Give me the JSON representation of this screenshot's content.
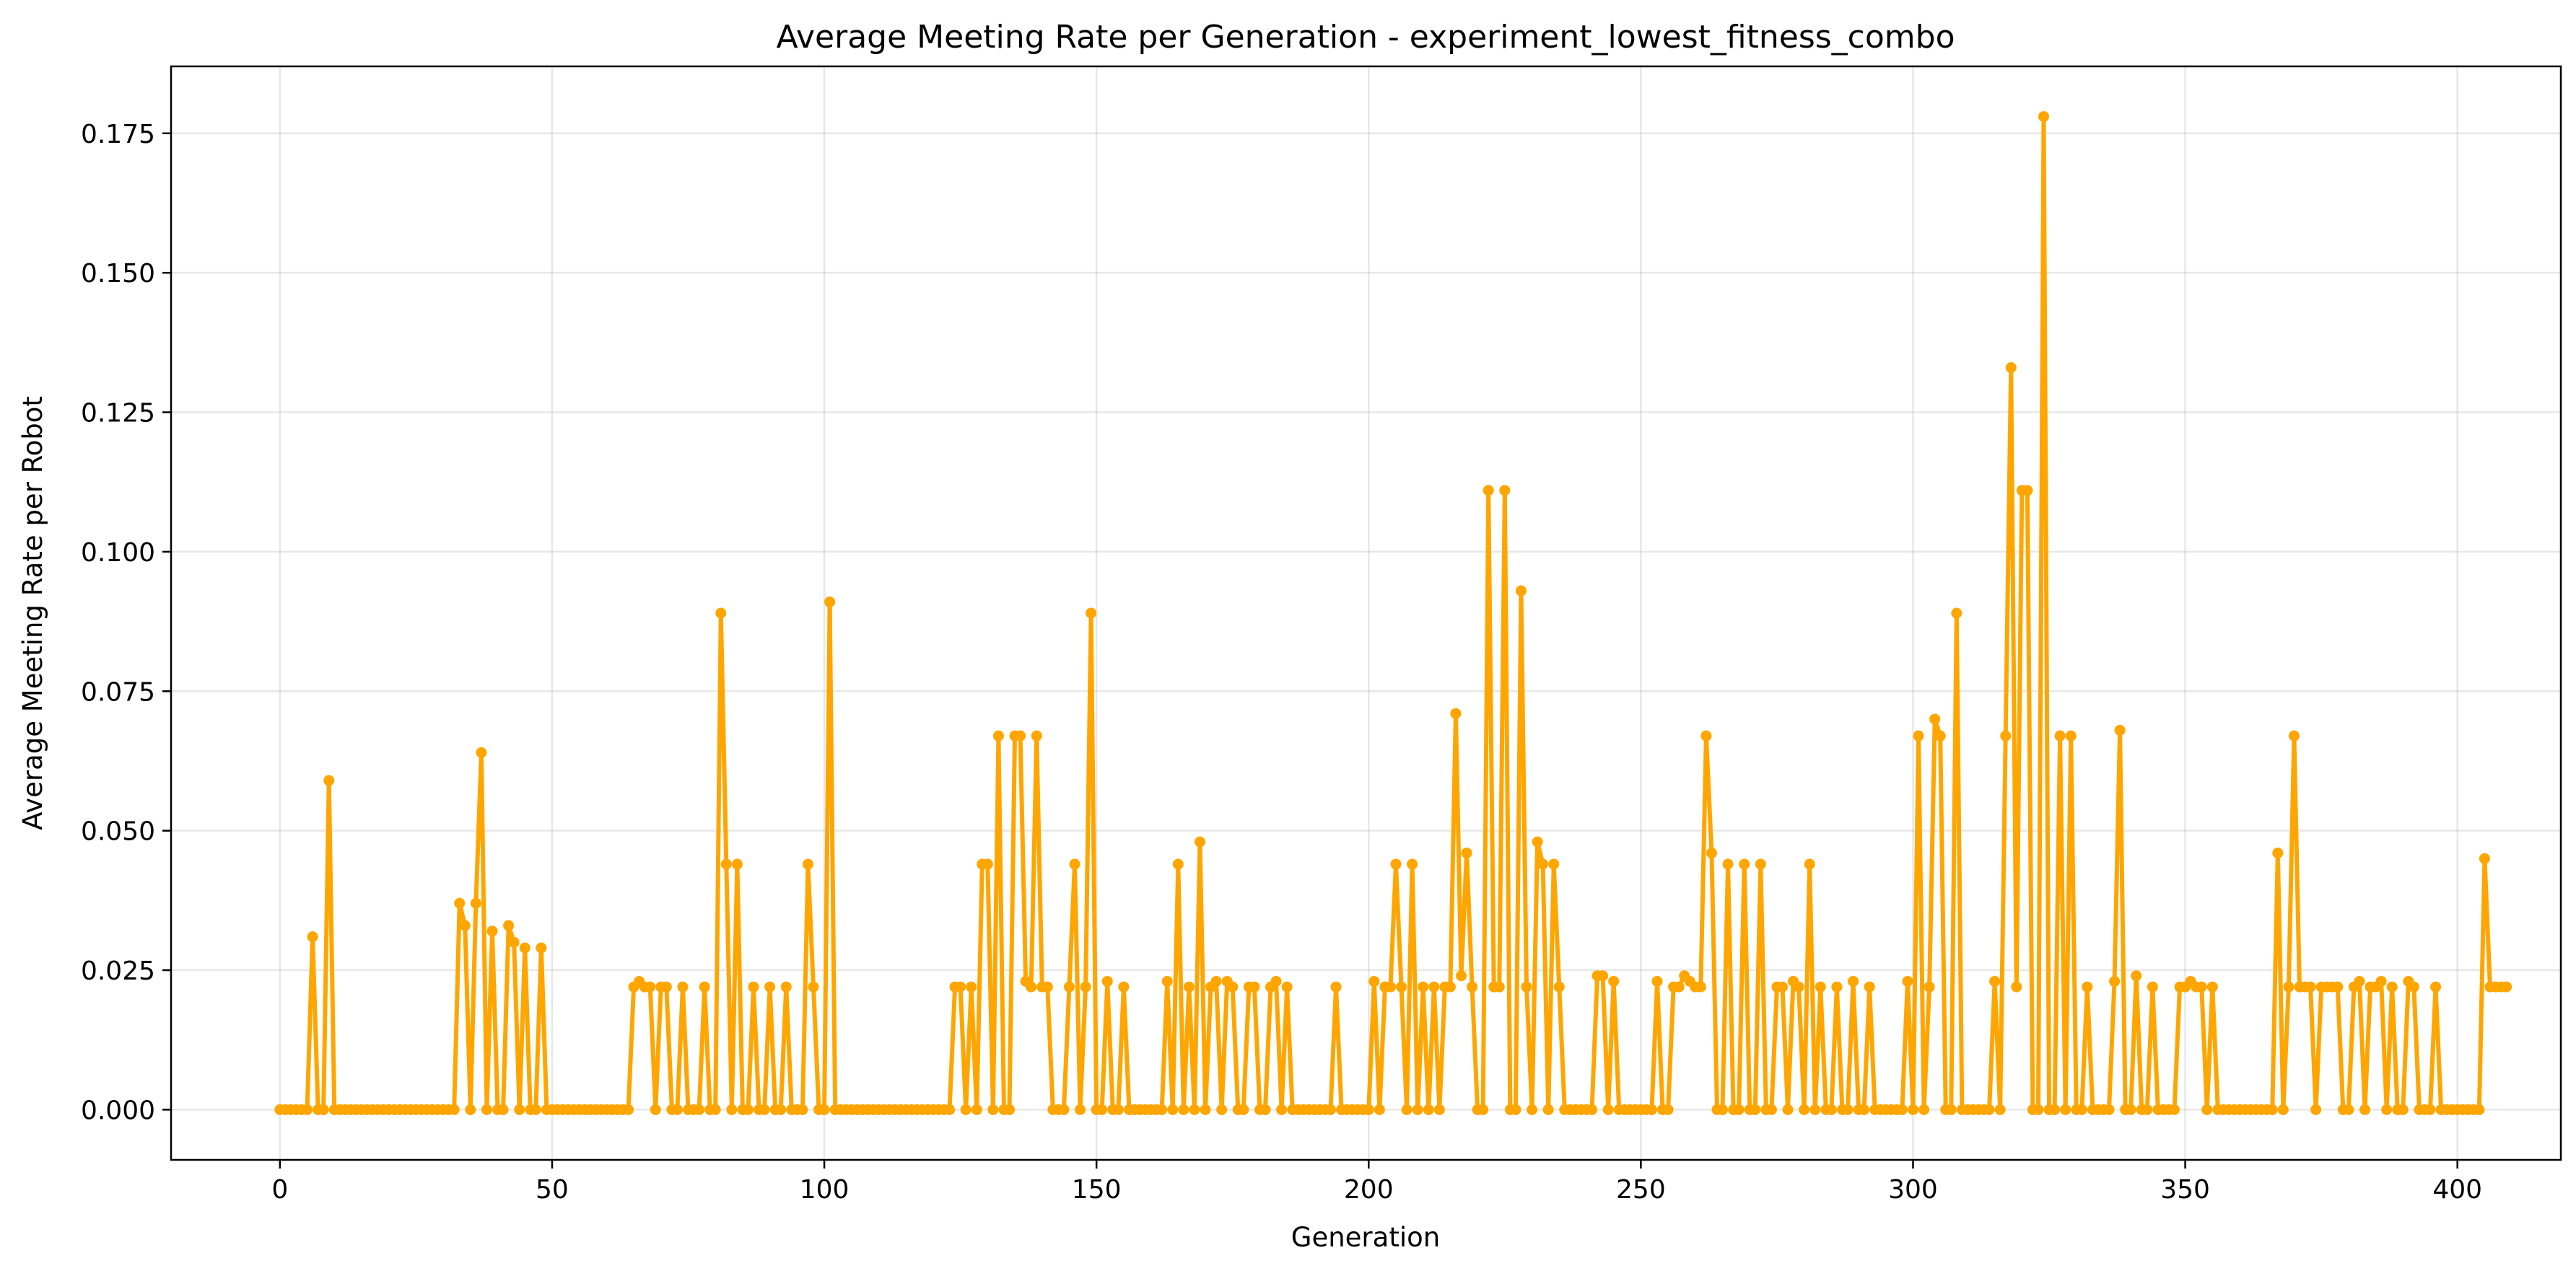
{
  "chart_data": {
    "type": "line",
    "title": "Average Meeting Rate per Generation - experiment_lowest_fitness_combo",
    "xlabel": "Generation",
    "ylabel": "Average Meeting Rate per Robot",
    "xlim": [
      -20,
      419
    ],
    "ylim": [
      -0.009,
      0.187
    ],
    "xticks": [
      0,
      50,
      100,
      150,
      200,
      250,
      300,
      350,
      400
    ],
    "xtick_labels": [
      "0",
      "50",
      "100",
      "150",
      "200",
      "250",
      "300",
      "350",
      "400"
    ],
    "yticks": [
      0,
      0.025,
      0.05,
      0.075,
      0.1,
      0.125,
      0.15,
      0.175
    ],
    "ytick_labels": [
      "0.000",
      "0.025",
      "0.050",
      "0.075",
      "0.100",
      "0.125",
      "0.150",
      "0.175"
    ],
    "grid": true,
    "color": "#FFA500",
    "marker": "circle",
    "series": [
      {
        "x_start": 0,
        "values": [
          0,
          0,
          0,
          0,
          0,
          0,
          0.031,
          0,
          0,
          0.059,
          0,
          0,
          0,
          0,
          0,
          0,
          0,
          0,
          0,
          0,
          0,
          0,
          0,
          0,
          0,
          0,
          0,
          0,
          0,
          0,
          0,
          0,
          0,
          0.037,
          0.033,
          0,
          0.037,
          0.064,
          0,
          0.032,
          0,
          0,
          0.033,
          0.03,
          0,
          0.029,
          0,
          0,
          0.029,
          0,
          0,
          0,
          0,
          0,
          0,
          0,
          0,
          0,
          0,
          0,
          0,
          0,
          0,
          0,
          0,
          0.022,
          0.023,
          0.022,
          0.022,
          0,
          0.022,
          0.022,
          0,
          0,
          0.022,
          0,
          0,
          0,
          0.022,
          0,
          0,
          0.089,
          0.044,
          0,
          0.044,
          0,
          0,
          0.022,
          0,
          0,
          0.022,
          0,
          0,
          0.022,
          0,
          0,
          0,
          0.044,
          0.022,
          0,
          0,
          0.091,
          0,
          0,
          0,
          0,
          0,
          0,
          0,
          0,
          0,
          0,
          0,
          0,
          0,
          0,
          0,
          0,
          0,
          0,
          0,
          0,
          0,
          0,
          0.022,
          0.022,
          0,
          0.022,
          0,
          0.044,
          0.044,
          0,
          0.067,
          0,
          0,
          0.067,
          0.067,
          0.023,
          0.022,
          0.067,
          0.022,
          0.022,
          0,
          0,
          0,
          0.022,
          0.044,
          0,
          0.022,
          0.089,
          0,
          0,
          0.023,
          0,
          0,
          0.022,
          0,
          0,
          0,
          0,
          0,
          0,
          0,
          0.023,
          0,
          0.044,
          0,
          0.022,
          0,
          0.048,
          0,
          0.022,
          0.023,
          0,
          0.023,
          0.022,
          0,
          0,
          0.022,
          0.022,
          0,
          0,
          0.022,
          0.023,
          0,
          0.022,
          0,
          0,
          0,
          0,
          0,
          0,
          0,
          0,
          0.022,
          0,
          0,
          0,
          0,
          0,
          0,
          0.023,
          0,
          0.022,
          0.022,
          0.044,
          0.022,
          0,
          0.044,
          0,
          0.022,
          0,
          0.022,
          0,
          0.022,
          0.022,
          0.071,
          0.024,
          0.046,
          0.022,
          0,
          0,
          0.111,
          0.022,
          0.022,
          0.111,
          0,
          0,
          0.093,
          0.022,
          0,
          0.048,
          0.044,
          0,
          0.044,
          0.022,
          0,
          0,
          0,
          0,
          0,
          0,
          0.024,
          0.024,
          0,
          0.023,
          0,
          0,
          0,
          0,
          0,
          0,
          0,
          0.023,
          0,
          0,
          0.022,
          0.022,
          0.024,
          0.023,
          0.022,
          0.022,
          0.067,
          0.046,
          0,
          0,
          0.044,
          0,
          0,
          0.044,
          0,
          0,
          0.044,
          0,
          0,
          0.022,
          0.022,
          0,
          0.023,
          0.022,
          0,
          0.044,
          0,
          0.022,
          0,
          0,
          0.022,
          0,
          0,
          0.023,
          0,
          0,
          0.022,
          0,
          0,
          0,
          0,
          0,
          0,
          0.023,
          0,
          0.067,
          0,
          0.022,
          0.07,
          0.067,
          0,
          0,
          0.089,
          0,
          0,
          0,
          0,
          0,
          0,
          0.023,
          0,
          0.067,
          0.133,
          0.022,
          0.111,
          0.111,
          0,
          0,
          0.178,
          0,
          0,
          0.067,
          0,
          0.067,
          0,
          0,
          0.022,
          0,
          0,
          0,
          0,
          0.023,
          0.068,
          0,
          0,
          0.024,
          0,
          0,
          0.022,
          0,
          0,
          0,
          0,
          0.022,
          0.022,
          0.023,
          0.022,
          0.022,
          0,
          0.022,
          0,
          0,
          0,
          0,
          0,
          0,
          0,
          0,
          0,
          0,
          0,
          0.046,
          0,
          0.022,
          0.067,
          0.022,
          0.022,
          0.022,
          0,
          0.022,
          0.022,
          0.022,
          0.022,
          0,
          0,
          0.022,
          0.023,
          0,
          0.022,
          0.022,
          0.023,
          0,
          0.022,
          0,
          0,
          0.023,
          0.022,
          0,
          0,
          0,
          0.022,
          0,
          0,
          0,
          0,
          0,
          0,
          0,
          0,
          0.045,
          0.022,
          0.022,
          0.022,
          0.022
        ]
      }
    ]
  }
}
